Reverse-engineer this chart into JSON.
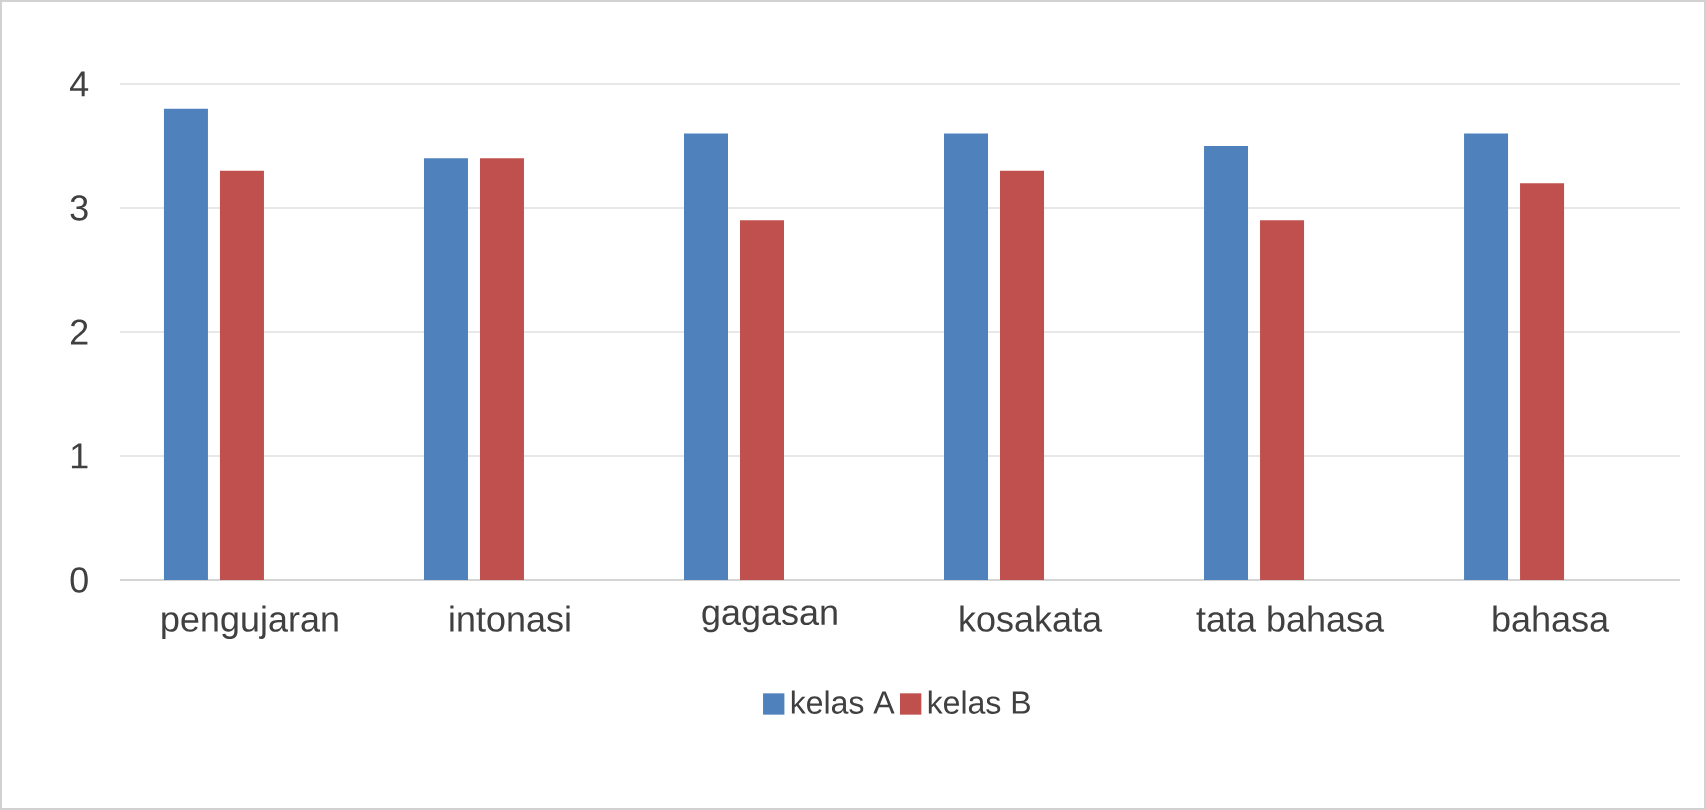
{
  "chart_data": {
    "type": "bar",
    "categories": [
      "pengujaran",
      "intonasi",
      "gagasan",
      "kosakata",
      "tata bahasa",
      "bahasa"
    ],
    "series": [
      {
        "name": "kelas A",
        "color": "#4f81bd",
        "values": [
          3.8,
          3.4,
          3.6,
          3.6,
          3.5,
          3.6
        ]
      },
      {
        "name": "kelas B",
        "color": "#c0504d",
        "values": [
          3.3,
          3.4,
          2.9,
          3.3,
          2.9,
          3.2
        ]
      }
    ],
    "ylim": [
      0,
      4
    ],
    "yticks": [
      0,
      1,
      2,
      3,
      4
    ],
    "grid": "y",
    "legend": "bottom"
  }
}
